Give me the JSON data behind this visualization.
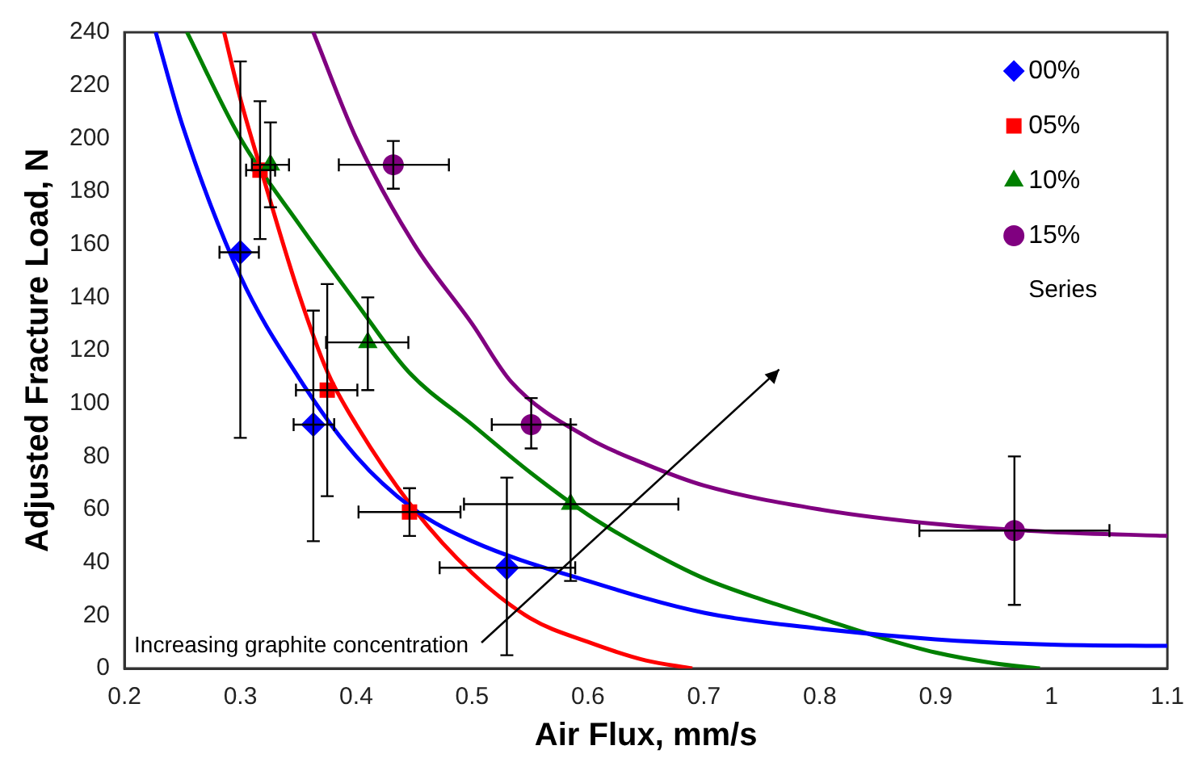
{
  "chart_data": {
    "type": "scatter",
    "xlabel": "Air Flux, mm/s",
    "ylabel": "Adjusted Fracture Load, N",
    "xlim": [
      0.2,
      1.1
    ],
    "xticks": [
      0.2,
      0.3,
      0.4,
      0.5,
      0.6,
      0.7,
      0.8,
      0.9,
      1,
      1.1
    ],
    "ylim": [
      0,
      240
    ],
    "yticks": [
      0,
      20,
      40,
      60,
      80,
      100,
      120,
      140,
      160,
      180,
      200,
      220,
      240
    ],
    "grid": false,
    "legend": "top right",
    "annotations": [
      "Increasing graphite concentration",
      "Series"
    ],
    "series": [
      {
        "name": "00%",
        "marker": "diamond",
        "color": "#0000ff",
        "x": [
          0.3,
          0.363,
          0.53
        ],
        "values": [
          157,
          92,
          38
        ],
        "errors": [
          [
            87,
            229
          ],
          [
            48,
            135
          ],
          [
            5,
            72
          ]
        ],
        "xerrors": [
          [
            0.282,
            0.316
          ],
          [
            0.346,
            0.381
          ],
          [
            0.472,
            0.589
          ]
        ]
      },
      {
        "name": "05%",
        "marker": "square",
        "color": "#ff0000",
        "x": [
          0.317,
          0.375,
          0.446
        ],
        "values": [
          188,
          105,
          59
        ],
        "errors": [
          [
            162,
            214
          ],
          [
            65,
            145
          ],
          [
            50,
            68
          ]
        ],
        "xerrors": [
          [
            0.305,
            0.33
          ],
          [
            0.348,
            0.401
          ],
          [
            0.402,
            0.49
          ]
        ]
      },
      {
        "name": "10%",
        "marker": "triangle",
        "color": "#008000",
        "x": [
          0.326,
          0.41,
          0.585
        ],
        "values": [
          190,
          123,
          62
        ],
        "errors": [
          [
            174,
            206
          ],
          [
            105,
            140
          ],
          [
            33,
            92
          ]
        ],
        "xerrors": [
          [
            0.31,
            0.342
          ],
          [
            0.374,
            0.445
          ],
          [
            0.493,
            0.678
          ]
        ]
      },
      {
        "name": "15%",
        "marker": "circle",
        "color": "#800080",
        "x": [
          0.432,
          0.551,
          0.968
        ],
        "values": [
          190,
          92,
          52
        ],
        "errors": [
          [
            181,
            199
          ],
          [
            83,
            102
          ],
          [
            24,
            80
          ]
        ],
        "xerrors": [
          [
            0.385,
            0.48
          ],
          [
            0.517,
            0.585
          ],
          [
            0.886,
            1.05
          ]
        ]
      },
      {
        "type": "line",
        "color": "#0000ff",
        "x": [
          0.227,
          0.25,
          0.3,
          0.35,
          0.4,
          0.45,
          0.5,
          0.6,
          0.7,
          0.8,
          0.9,
          1,
          1.1
        ],
        "values": [
          240,
          205,
          148,
          110,
          80,
          60,
          48,
          33,
          21,
          15,
          11,
          9,
          8.5
        ]
      },
      {
        "type": "line",
        "color": "#ff0000",
        "x": [
          0.286,
          0.3,
          0.32,
          0.35,
          0.375,
          0.4,
          0.45,
          0.5,
          0.55,
          0.6,
          0.65,
          0.69
        ],
        "values": [
          240,
          215,
          185,
          142,
          112,
          92,
          60,
          36,
          19,
          10,
          3,
          0
        ]
      },
      {
        "type": "line",
        "color": "#008000",
        "x": [
          0.254,
          0.3,
          0.35,
          0.4,
          0.445,
          0.5,
          0.55,
          0.6,
          0.65,
          0.7,
          0.75,
          0.8,
          0.85,
          0.9,
          0.95,
          0.99
        ],
        "values": [
          240,
          200,
          168,
          138,
          112,
          92,
          74,
          58,
          45,
          34,
          26,
          19,
          12,
          6,
          2,
          0
        ]
      },
      {
        "type": "line",
        "color": "#800080",
        "x": [
          0.363,
          0.4,
          0.45,
          0.5,
          0.534,
          0.6,
          0.65,
          0.7,
          0.8,
          0.9,
          1,
          1.1
        ],
        "values": [
          240,
          200,
          160,
          130,
          108,
          87,
          77,
          69,
          60,
          54.5,
          51.5,
          50
        ]
      }
    ]
  }
}
